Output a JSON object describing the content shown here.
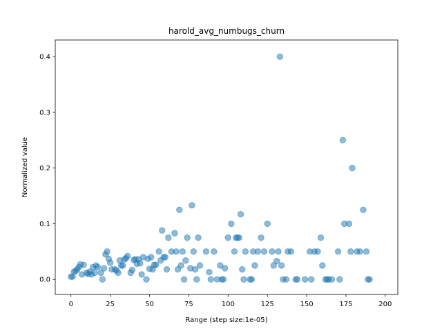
{
  "chart_data": {
    "type": "scatter",
    "title": "harold_avg_numbugs_churn",
    "xlabel": "Range (step size:1e-05)",
    "ylabel": "Normalized value",
    "xlim": [
      -10,
      208
    ],
    "ylim": [
      -0.027,
      0.43
    ],
    "xticks": [
      0,
      25,
      50,
      75,
      100,
      125,
      150,
      175,
      200
    ],
    "yticks": [
      0.0,
      0.1,
      0.2,
      0.3,
      0.4
    ],
    "xtick_labels": [
      "0",
      "25",
      "50",
      "75",
      "100",
      "125",
      "150",
      "175",
      "200"
    ],
    "ytick_labels": [
      "0.0",
      "0.1",
      "0.2",
      "0.3",
      "0.4"
    ],
    "grid": false,
    "color": "#1f77b4",
    "alpha": 0.5,
    "points": [
      [
        0,
        0.005
      ],
      [
        1,
        0.005
      ],
      [
        2,
        0.014
      ],
      [
        3,
        0.015
      ],
      [
        4,
        0.018
      ],
      [
        5,
        0.022
      ],
      [
        6,
        0.027
      ],
      [
        7,
        0.009
      ],
      [
        8,
        0.026
      ],
      [
        10,
        0.012
      ],
      [
        11,
        0.01
      ],
      [
        12,
        0.014
      ],
      [
        13,
        0.009
      ],
      [
        14,
        0.022
      ],
      [
        15,
        0.012
      ],
      [
        16,
        0.025
      ],
      [
        17,
        0.022
      ],
      [
        19,
        0.012
      ],
      [
        20,
        0.0
      ],
      [
        21,
        0.02
      ],
      [
        22,
        0.045
      ],
      [
        23,
        0.05
      ],
      [
        24,
        0.037
      ],
      [
        25,
        0.03
      ],
      [
        26,
        0.018
      ],
      [
        28,
        0.018
      ],
      [
        29,
        0.016
      ],
      [
        30,
        0.012
      ],
      [
        31,
        0.034
      ],
      [
        32,
        0.025
      ],
      [
        33,
        0.025
      ],
      [
        34,
        0.036
      ],
      [
        35,
        0.038
      ],
      [
        36,
        0.042
      ],
      [
        38,
        0.012
      ],
      [
        39,
        0.017
      ],
      [
        40,
        0.035
      ],
      [
        41,
        0.036
      ],
      [
        42,
        0.028
      ],
      [
        43,
        0.036
      ],
      [
        44,
        0.029
      ],
      [
        45,
        0.009
      ],
      [
        46,
        0.04
      ],
      [
        48,
        0.0
      ],
      [
        49,
        0.037
      ],
      [
        50,
        0.019
      ],
      [
        51,
        0.04
      ],
      [
        52,
        0.018
      ],
      [
        53,
        0.026
      ],
      [
        54,
        0.026
      ],
      [
        56,
        0.05
      ],
      [
        57,
        0.034
      ],
      [
        58,
        0.088
      ],
      [
        59,
        0.04
      ],
      [
        60,
        0.04
      ],
      [
        61,
        0.018
      ],
      [
        62,
        0.075
      ],
      [
        64,
        0.05
      ],
      [
        66,
        0.083
      ],
      [
        67,
        0.05
      ],
      [
        68,
        0.018
      ],
      [
        69,
        0.125
      ],
      [
        70,
        0.025
      ],
      [
        71,
        0.05
      ],
      [
        72,
        0.0
      ],
      [
        73,
        0.034
      ],
      [
        74,
        0.075
      ],
      [
        76,
        0.02
      ],
      [
        77,
        0.133
      ],
      [
        78,
        0.05
      ],
      [
        79,
        0.018
      ],
      [
        80,
        0.0
      ],
      [
        81,
        0.075
      ],
      [
        82,
        0.025
      ],
      [
        86,
        0.05
      ],
      [
        88,
        0.013
      ],
      [
        89,
        0.0
      ],
      [
        91,
        0.05
      ],
      [
        93,
        0.0
      ],
      [
        95,
        0.025
      ],
      [
        96,
        0.0
      ],
      [
        97,
        0.0
      ],
      [
        98,
        0.02
      ],
      [
        100,
        0.075
      ],
      [
        102,
        0.1
      ],
      [
        104,
        0.05
      ],
      [
        105,
        0.075
      ],
      [
        106,
        0.075
      ],
      [
        107,
        0.075
      ],
      [
        108,
        0.117
      ],
      [
        109,
        0.018
      ],
      [
        110,
        0.0
      ],
      [
        111,
        0.05
      ],
      [
        114,
        0.0
      ],
      [
        115,
        0.0
      ],
      [
        116,
        0.05
      ],
      [
        117,
        0.025
      ],
      [
        119,
        0.05
      ],
      [
        121,
        0.075
      ],
      [
        123,
        0.05
      ],
      [
        125,
        0.1
      ],
      [
        128,
        0.05
      ],
      [
        129,
        0.025
      ],
      [
        131,
        0.033
      ],
      [
        132,
        0.05
      ],
      [
        133,
        0.4
      ],
      [
        134,
        0.025
      ],
      [
        135,
        0.0
      ],
      [
        137,
        0.0
      ],
      [
        138,
        0.05
      ],
      [
        140,
        0.05
      ],
      [
        143,
        0.0
      ],
      [
        144,
        0.0
      ],
      [
        149,
        0.0
      ],
      [
        152,
        0.05
      ],
      [
        153,
        0.0
      ],
      [
        155,
        0.05
      ],
      [
        157,
        0.05
      ],
      [
        159,
        0.075
      ],
      [
        160,
        0.025
      ],
      [
        162,
        0.0
      ],
      [
        163,
        0.0
      ],
      [
        164,
        0.0
      ],
      [
        166,
        0.0
      ],
      [
        170,
        0.05
      ],
      [
        171,
        0.0
      ],
      [
        173,
        0.25
      ],
      [
        174,
        0.1
      ],
      [
        177,
        0.1
      ],
      [
        178,
        0.05
      ],
      [
        179,
        0.2
      ],
      [
        182,
        0.05
      ],
      [
        184,
        0.05
      ],
      [
        186,
        0.125
      ],
      [
        188,
        0.05
      ],
      [
        189,
        0.0
      ],
      [
        190,
        0.0
      ]
    ]
  }
}
